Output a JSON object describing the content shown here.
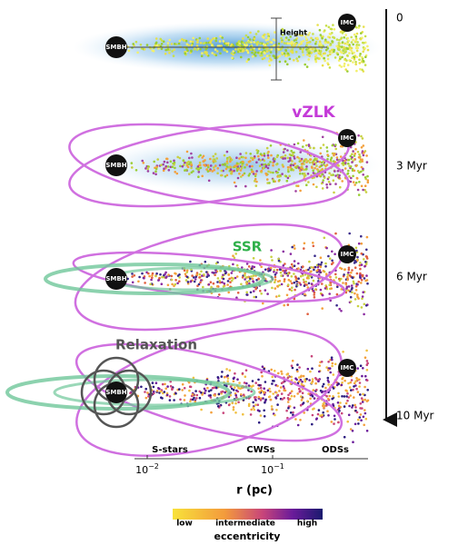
{
  "panels": [
    {
      "time": "0",
      "smbh": "SMBH",
      "imc": "IMC",
      "annotation": "Height"
    },
    {
      "time": "3 Myr",
      "smbh": "SMBH",
      "imc": "IMC",
      "annotation": "vZLK"
    },
    {
      "time": "6 Myr",
      "smbh": "SMBH",
      "imc": "IMC",
      "annotation": "SSR"
    },
    {
      "time": "10 Myr",
      "smbh": "SMBH",
      "imc": "IMC",
      "annotation": "Relaxation"
    }
  ],
  "regions": [
    "S-stars",
    "CWSs",
    "ODSs"
  ],
  "x_axis": {
    "label": "r (pc)",
    "ticks": [
      {
        "base": "10",
        "exponent": "−2"
      },
      {
        "base": "10",
        "exponent": "−1"
      }
    ]
  },
  "colorbar": {
    "title": "eccentricity",
    "labels": [
      "low",
      "intermediate",
      "high"
    ]
  }
}
